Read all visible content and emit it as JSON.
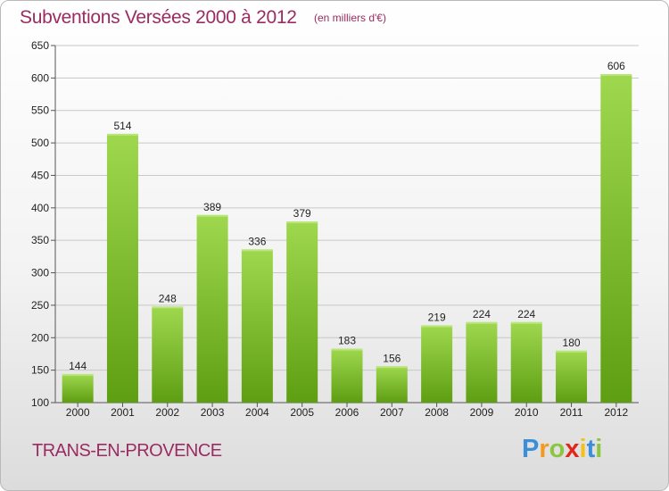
{
  "header": {
    "title": "Subventions Versées 2000 à 2012",
    "unit": "(en milliers d'€)"
  },
  "footer": {
    "commune": "TRANS-EN-PROVENCE",
    "logo_letters": [
      "P",
      "r",
      "o",
      "x",
      "i",
      "t",
      "i"
    ],
    "logo_colors": [
      "#3a8fd8",
      "#f29a1e",
      "#8cc63f",
      "#e2261a",
      "#f2c21b",
      "#3a8fd8",
      "#8cc63f"
    ]
  },
  "colors": {
    "bar_top": "#9fd84f",
    "bar_bottom": "#5e9e12",
    "grid": "#c8c8c8",
    "text": "#222222",
    "accent": "#9b2b62"
  },
  "chart_data": {
    "type": "bar",
    "categories": [
      "2000",
      "2001",
      "2002",
      "2003",
      "2004",
      "2005",
      "2006",
      "2007",
      "2008",
      "2009",
      "2010",
      "2011",
      "2012"
    ],
    "values": [
      144,
      514,
      248,
      389,
      336,
      379,
      183,
      156,
      219,
      224,
      224,
      180,
      606
    ],
    "ylim": [
      100,
      650
    ],
    "yticks": [
      100,
      150,
      200,
      250,
      300,
      350,
      400,
      450,
      500,
      550,
      600,
      650
    ],
    "grid": true,
    "title": "Subventions Versées 2000 à 2012",
    "xlabel": "",
    "ylabel": ""
  }
}
